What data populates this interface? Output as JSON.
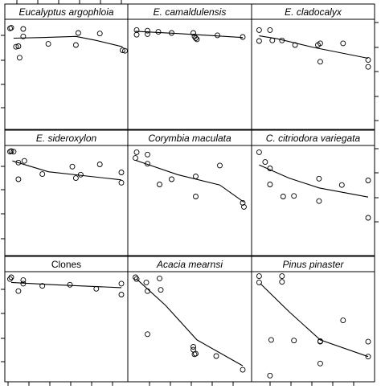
{
  "figure": {
    "ncols": 3,
    "nrows": 3
  },
  "chart_data": [
    {
      "type": "scatter",
      "title": "Eucalyptus argophloia",
      "title_italic": true,
      "points": [
        [
          0.04,
          0.94
        ],
        [
          0.03,
          0.93
        ],
        [
          0.14,
          0.92
        ],
        [
          0.14,
          0.79
        ],
        [
          0.1,
          0.62
        ],
        [
          0.08,
          0.61
        ],
        [
          0.35,
          0.66
        ],
        [
          0.58,
          0.64
        ],
        [
          0.6,
          0.85
        ],
        [
          0.78,
          0.84
        ],
        [
          0.97,
          0.55
        ],
        [
          0.99,
          0.54
        ],
        [
          0.11,
          0.42
        ]
      ],
      "trend": [
        [
          0.06,
          0.76
        ],
        [
          0.3,
          0.77
        ],
        [
          0.58,
          0.79
        ],
        [
          0.75,
          0.72
        ],
        [
          0.97,
          0.61
        ]
      ]
    },
    {
      "type": "scatter",
      "title": "E. camaldulensis",
      "title_italic": true,
      "points": [
        [
          0.06,
          0.9
        ],
        [
          0.06,
          0.82
        ],
        [
          0.15,
          0.89
        ],
        [
          0.15,
          0.83
        ],
        [
          0.24,
          0.87
        ],
        [
          0.35,
          0.85
        ],
        [
          0.53,
          0.85
        ],
        [
          0.54,
          0.79
        ],
        [
          0.55,
          0.76
        ],
        [
          0.56,
          0.74
        ],
        [
          0.73,
          0.81
        ],
        [
          0.94,
          0.78
        ]
      ],
      "trend": [
        [
          0.05,
          0.88
        ],
        [
          0.4,
          0.84
        ],
        [
          0.94,
          0.77
        ]
      ]
    },
    {
      "type": "scatter",
      "title": "E. cladocalyx",
      "title_italic": true,
      "points": [
        [
          0.05,
          0.9
        ],
        [
          0.05,
          0.71
        ],
        [
          0.14,
          0.9
        ],
        [
          0.16,
          0.72
        ],
        [
          0.24,
          0.72
        ],
        [
          0.35,
          0.64
        ],
        [
          0.54,
          0.64
        ],
        [
          0.56,
          0.67
        ],
        [
          0.56,
          0.35
        ],
        [
          0.75,
          0.67
        ],
        [
          0.96,
          0.38
        ],
        [
          0.96,
          0.26
        ]
      ],
      "trend": [
        [
          0.05,
          0.8
        ],
        [
          0.2,
          0.75
        ],
        [
          0.5,
          0.6
        ],
        [
          0.96,
          0.41
        ]
      ]
    },
    {
      "type": "scatter",
      "title": "E. sideroxylon",
      "title_italic": true,
      "points": [
        [
          0.04,
          0.99
        ],
        [
          0.03,
          0.98
        ],
        [
          0.06,
          0.98
        ],
        [
          0.1,
          0.79
        ],
        [
          0.1,
          0.5
        ],
        [
          0.15,
          0.82
        ],
        [
          0.3,
          0.59
        ],
        [
          0.55,
          0.72
        ],
        [
          0.58,
          0.52
        ],
        [
          0.62,
          0.58
        ],
        [
          0.78,
          0.76
        ],
        [
          0.96,
          0.62
        ],
        [
          0.96,
          0.44
        ]
      ],
      "trend": [
        [
          0.05,
          0.82
        ],
        [
          0.35,
          0.63
        ],
        [
          0.96,
          0.49
        ]
      ]
    },
    {
      "type": "scatter",
      "title": "Corymbia  maculata",
      "title_italic": true,
      "points": [
        [
          0.06,
          0.97
        ],
        [
          0.05,
          0.87
        ],
        [
          0.15,
          0.93
        ],
        [
          0.15,
          0.77
        ],
        [
          0.25,
          0.41
        ],
        [
          0.35,
          0.5
        ],
        [
          0.55,
          0.55
        ],
        [
          0.55,
          0.2
        ],
        [
          0.75,
          0.74
        ],
        [
          0.94,
          0.09
        ],
        [
          0.95,
          0.02
        ]
      ],
      "trend": [
        [
          0.05,
          0.83
        ],
        [
          0.4,
          0.58
        ],
        [
          0.75,
          0.4
        ],
        [
          0.95,
          0.1
        ]
      ]
    },
    {
      "type": "scatter",
      "title": "C. citriodora  variegata",
      "title_italic": true,
      "points": [
        [
          0.05,
          0.97
        ],
        [
          0.1,
          0.8
        ],
        [
          0.14,
          0.69
        ],
        [
          0.14,
          0.41
        ],
        [
          0.25,
          0.2
        ],
        [
          0.34,
          0.21
        ],
        [
          0.55,
          0.51
        ],
        [
          0.55,
          0.12
        ],
        [
          0.74,
          0.4
        ],
        [
          0.96,
          0.48
        ],
        [
          0.96,
          -0.17
        ]
      ],
      "trend": [
        [
          0.05,
          0.75
        ],
        [
          0.3,
          0.52
        ],
        [
          0.55,
          0.35
        ],
        [
          0.96,
          0.19
        ]
      ]
    },
    {
      "type": "scatter",
      "title": "Clones",
      "title_italic": false,
      "points": [
        [
          0.04,
          0.99
        ],
        [
          0.03,
          0.96
        ],
        [
          0.14,
          0.94
        ],
        [
          0.14,
          0.88
        ],
        [
          0.1,
          0.75
        ],
        [
          0.3,
          0.84
        ],
        [
          0.53,
          0.86
        ],
        [
          0.75,
          0.79
        ],
        [
          0.96,
          0.88
        ],
        [
          0.96,
          0.69
        ]
      ],
      "trend": [
        [
          0.04,
          0.9
        ],
        [
          0.4,
          0.86
        ],
        [
          0.96,
          0.81
        ]
      ]
    },
    {
      "type": "scatter",
      "title": "Acacia mearnsi",
      "title_italic": true,
      "points": [
        [
          0.05,
          0.99
        ],
        [
          0.06,
          0.96
        ],
        [
          0.14,
          0.9
        ],
        [
          0.15,
          0.75
        ],
        [
          0.15,
          0.0
        ],
        [
          0.25,
          0.97
        ],
        [
          0.26,
          0.77
        ],
        [
          0.53,
          -0.22
        ],
        [
          0.53,
          -0.27
        ],
        [
          0.54,
          -0.35
        ],
        [
          0.55,
          -0.34
        ],
        [
          0.72,
          -0.38
        ],
        [
          0.94,
          -0.62
        ]
      ],
      "trend": [
        [
          0.06,
          0.96
        ],
        [
          0.3,
          0.5
        ],
        [
          0.56,
          -0.1
        ],
        [
          0.94,
          -0.55
        ]
      ]
    },
    {
      "type": "scatter",
      "title": "Pinus pinaster",
      "title_italic": true,
      "points": [
        [
          0.05,
          1.01
        ],
        [
          0.05,
          0.9
        ],
        [
          0.24,
          1.01
        ],
        [
          0.24,
          0.91
        ],
        [
          0.15,
          -0.1
        ],
        [
          0.14,
          -0.72
        ],
        [
          0.34,
          -0.11
        ],
        [
          0.56,
          -0.12
        ],
        [
          0.56,
          -0.51
        ],
        [
          0.75,
          0.24
        ],
        [
          0.56,
          -0.13
        ],
        [
          0.96,
          -0.39
        ],
        [
          0.96,
          -0.13
        ]
      ],
      "trend": [
        [
          0.06,
          0.88
        ],
        [
          0.3,
          0.39
        ],
        [
          0.56,
          -0.1
        ],
        [
          0.96,
          -0.39
        ]
      ]
    }
  ]
}
